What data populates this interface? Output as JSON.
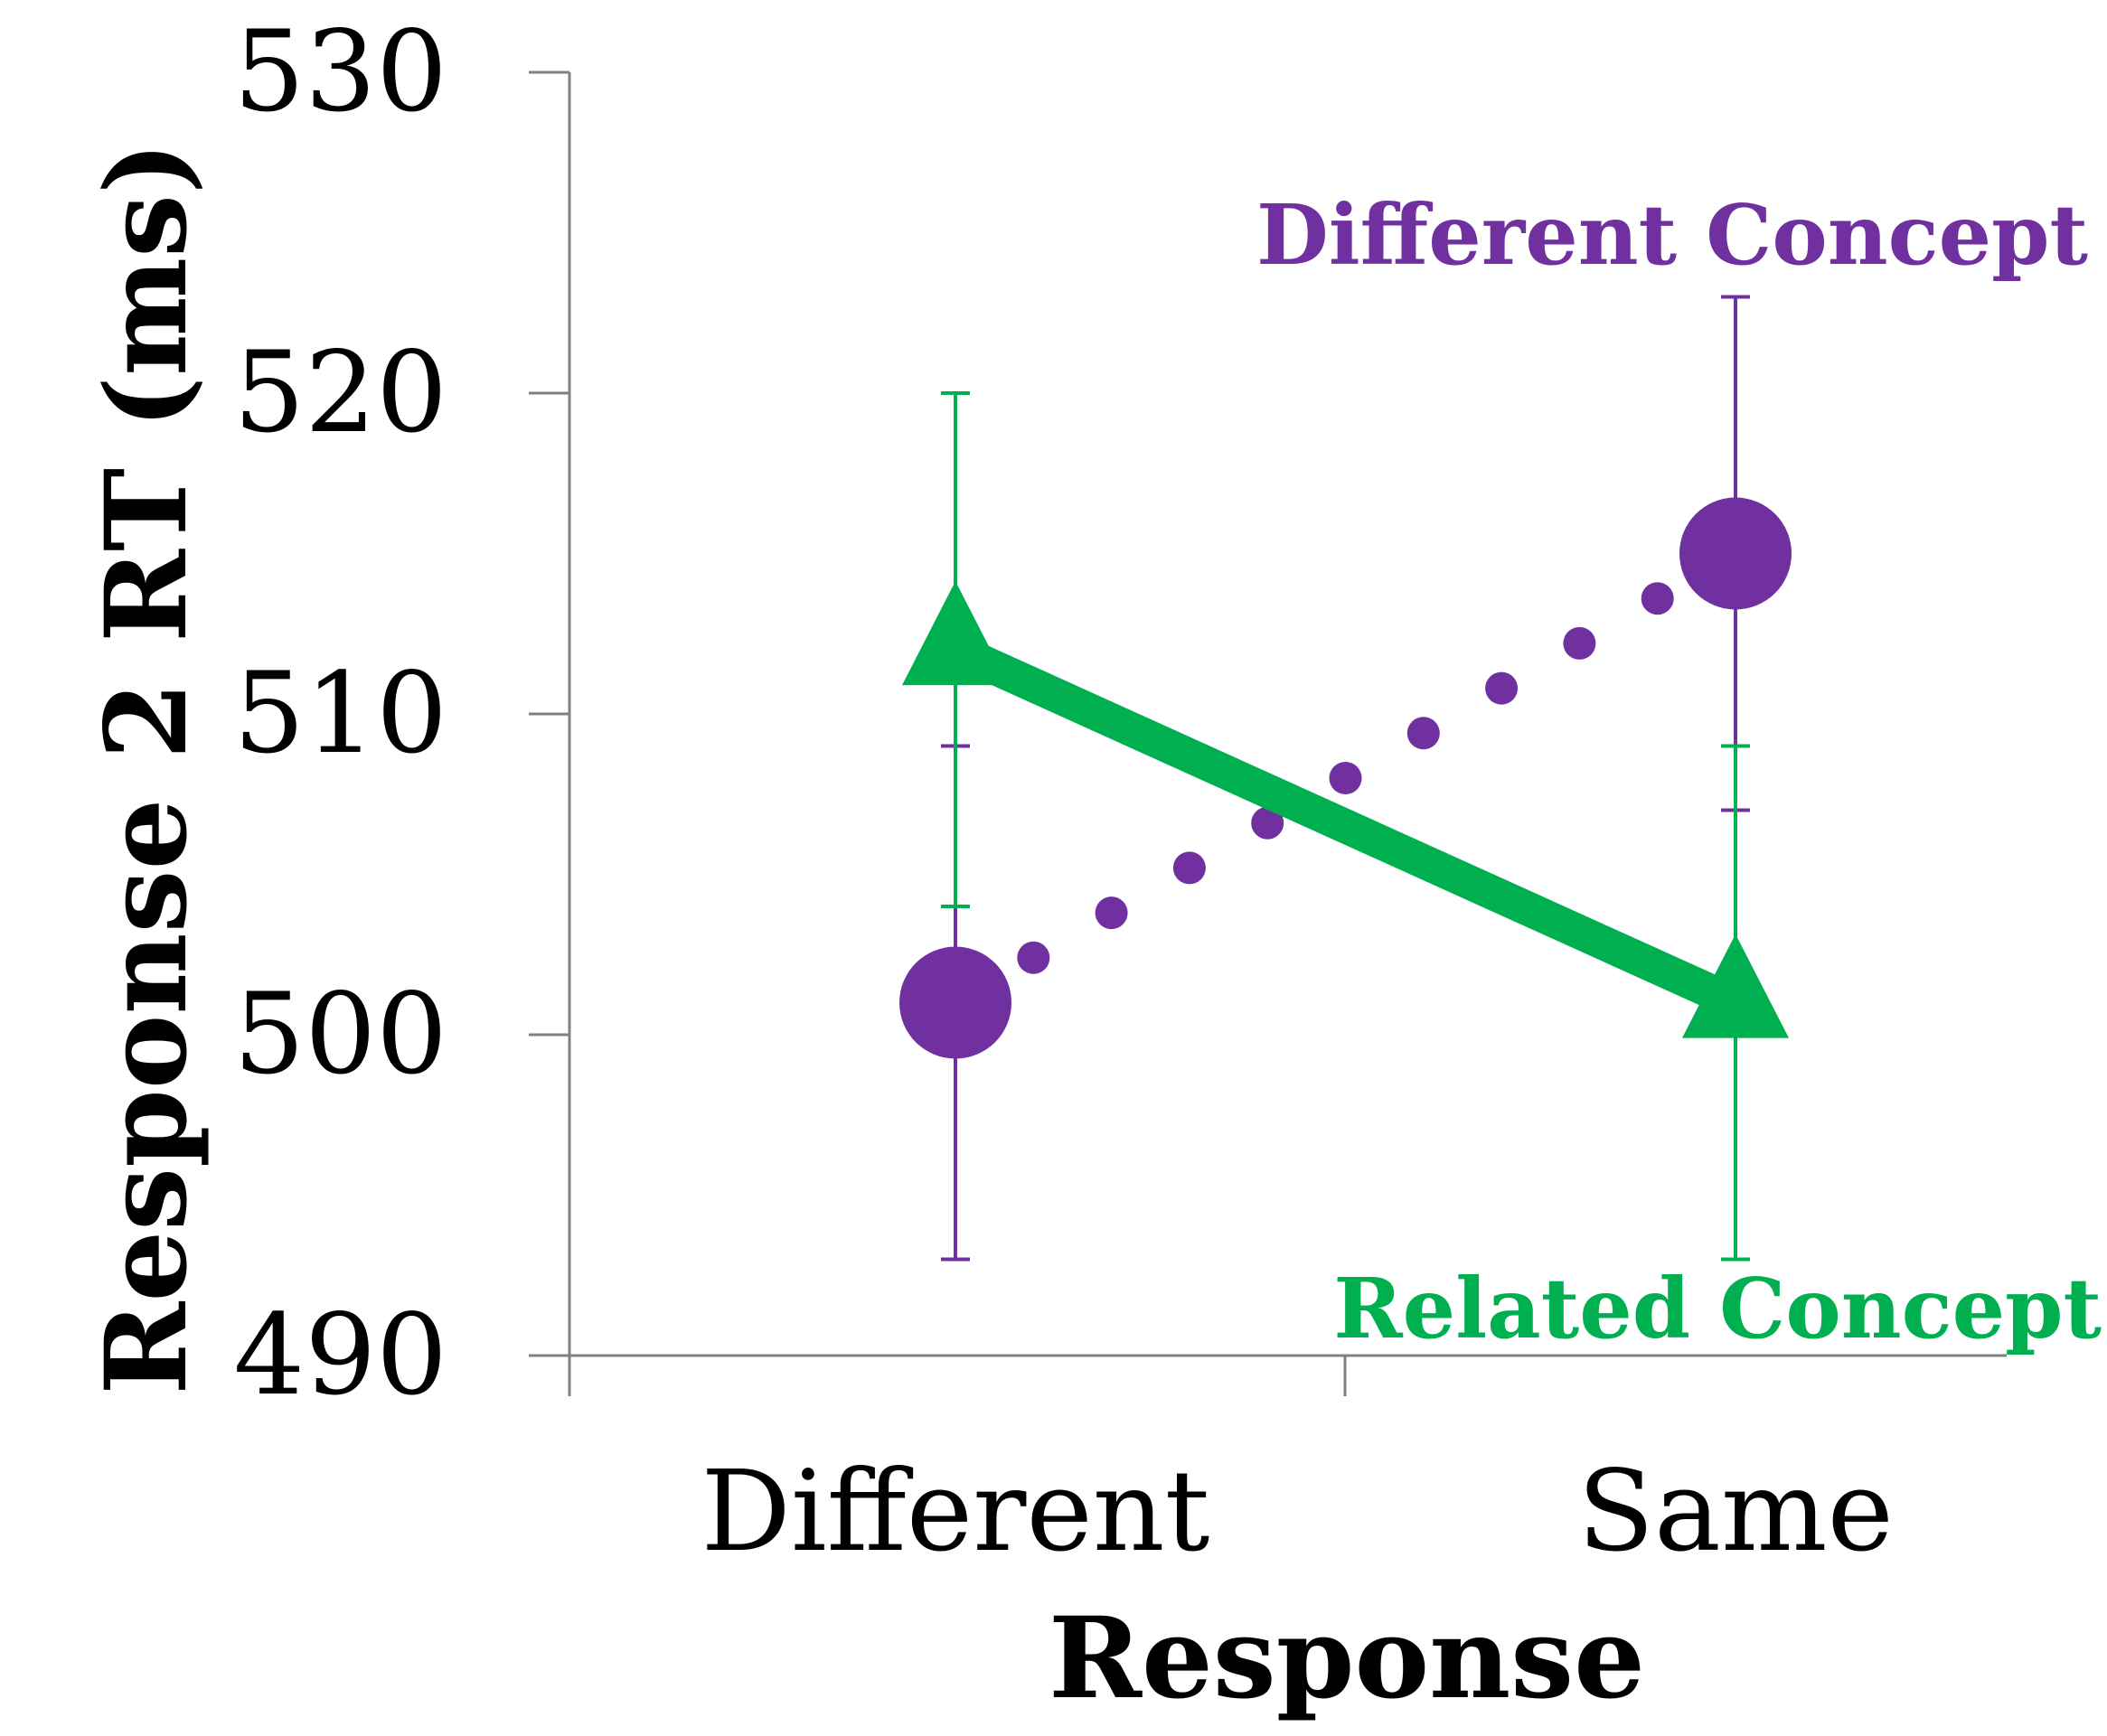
{
  "chart_data": {
    "type": "line",
    "title": "",
    "xlabel": "Response",
    "ylabel": "Response 2 RT (ms)",
    "categories": [
      "Different",
      "Same"
    ],
    "ylim": [
      490,
      530
    ],
    "yticks": [
      490,
      500,
      510,
      520,
      530
    ],
    "grid": false,
    "legend": "direct labels",
    "series": [
      {
        "name": "Different Concept",
        "color": "#7030a0",
        "line_style": "dotted",
        "marker": "circle",
        "values": [
          501,
          515
        ],
        "error_low": [
          493,
          507
        ],
        "error_high": [
          509,
          523
        ]
      },
      {
        "name": "Related Concept",
        "color": "#00b050",
        "line_style": "solid",
        "marker": "triangle",
        "values": [
          512,
          501
        ],
        "error_low": [
          504,
          493
        ],
        "error_high": [
          520,
          509
        ]
      }
    ]
  }
}
